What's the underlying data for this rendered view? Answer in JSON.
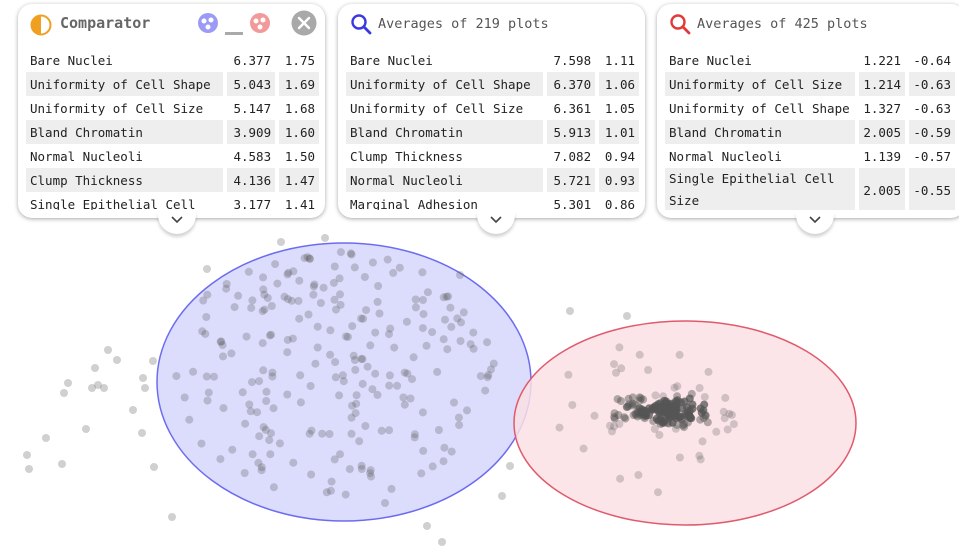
{
  "comparator": {
    "title": "Comparator",
    "rows": [
      {
        "name": "Bare Nuclei",
        "a": "6.377",
        "b": "1.75"
      },
      {
        "name": "Uniformity of Cell Shape",
        "a": "5.043",
        "b": "1.69"
      },
      {
        "name": "Uniformity of Cell Size",
        "a": "5.147",
        "b": "1.68"
      },
      {
        "name": "Bland Chromatin",
        "a": "3.909",
        "b": "1.60"
      },
      {
        "name": "Normal Nucleoli",
        "a": "4.583",
        "b": "1.50"
      },
      {
        "name": "Clump Thickness",
        "a": "4.136",
        "b": "1.47"
      },
      {
        "name": "Single Epithelial Cell",
        "a": "3.177",
        "b": "1.41"
      }
    ]
  },
  "blue_panel": {
    "title": "Averages of 219 plots",
    "rows": [
      {
        "name": "Bare Nuclei",
        "a": "7.598",
        "b": "1.11"
      },
      {
        "name": "Uniformity of Cell Shape",
        "a": "6.370",
        "b": "1.06"
      },
      {
        "name": "Uniformity of Cell Size",
        "a": "6.361",
        "b": "1.05"
      },
      {
        "name": "Bland Chromatin",
        "a": "5.913",
        "b": "1.01"
      },
      {
        "name": "Clump Thickness",
        "a": "7.082",
        "b": "0.94"
      },
      {
        "name": "Normal Nucleoli",
        "a": "5.721",
        "b": "0.93"
      },
      {
        "name": "Marginal Adhesion",
        "a": "5.301",
        "b": "0.86"
      }
    ]
  },
  "red_panel": {
    "title": "Averages of 425 plots",
    "rows": [
      {
        "name": "Bare Nuclei",
        "a": "1.221",
        "b": "-0.64"
      },
      {
        "name": "Uniformity of Cell Size",
        "a": "1.214",
        "b": "-0.63"
      },
      {
        "name": "Uniformity of Cell Shape",
        "a": "1.327",
        "b": "-0.63"
      },
      {
        "name": "Bland Chromatin",
        "a": "2.005",
        "b": "-0.59"
      },
      {
        "name": "Normal Nucleoli",
        "a": "1.139",
        "b": "-0.57"
      },
      {
        "name": "Single Epithelial Cell Size",
        "a": "2.005",
        "b": "-0.55"
      }
    ]
  },
  "colors": {
    "blue_fill": "#d6d6fb",
    "blue_stroke": "#6c6cf0",
    "red_fill": "#fae0e4",
    "red_stroke": "#e05a6c",
    "orange": "#f0a020",
    "search_blue": "#3a3ae0",
    "search_red": "#e03a3a"
  },
  "icons": [
    "half-circle-icon",
    "blue-cluster-icon",
    "minus-icon",
    "red-cluster-icon",
    "close-icon",
    "search-icon",
    "chevron-down-icon"
  ]
}
